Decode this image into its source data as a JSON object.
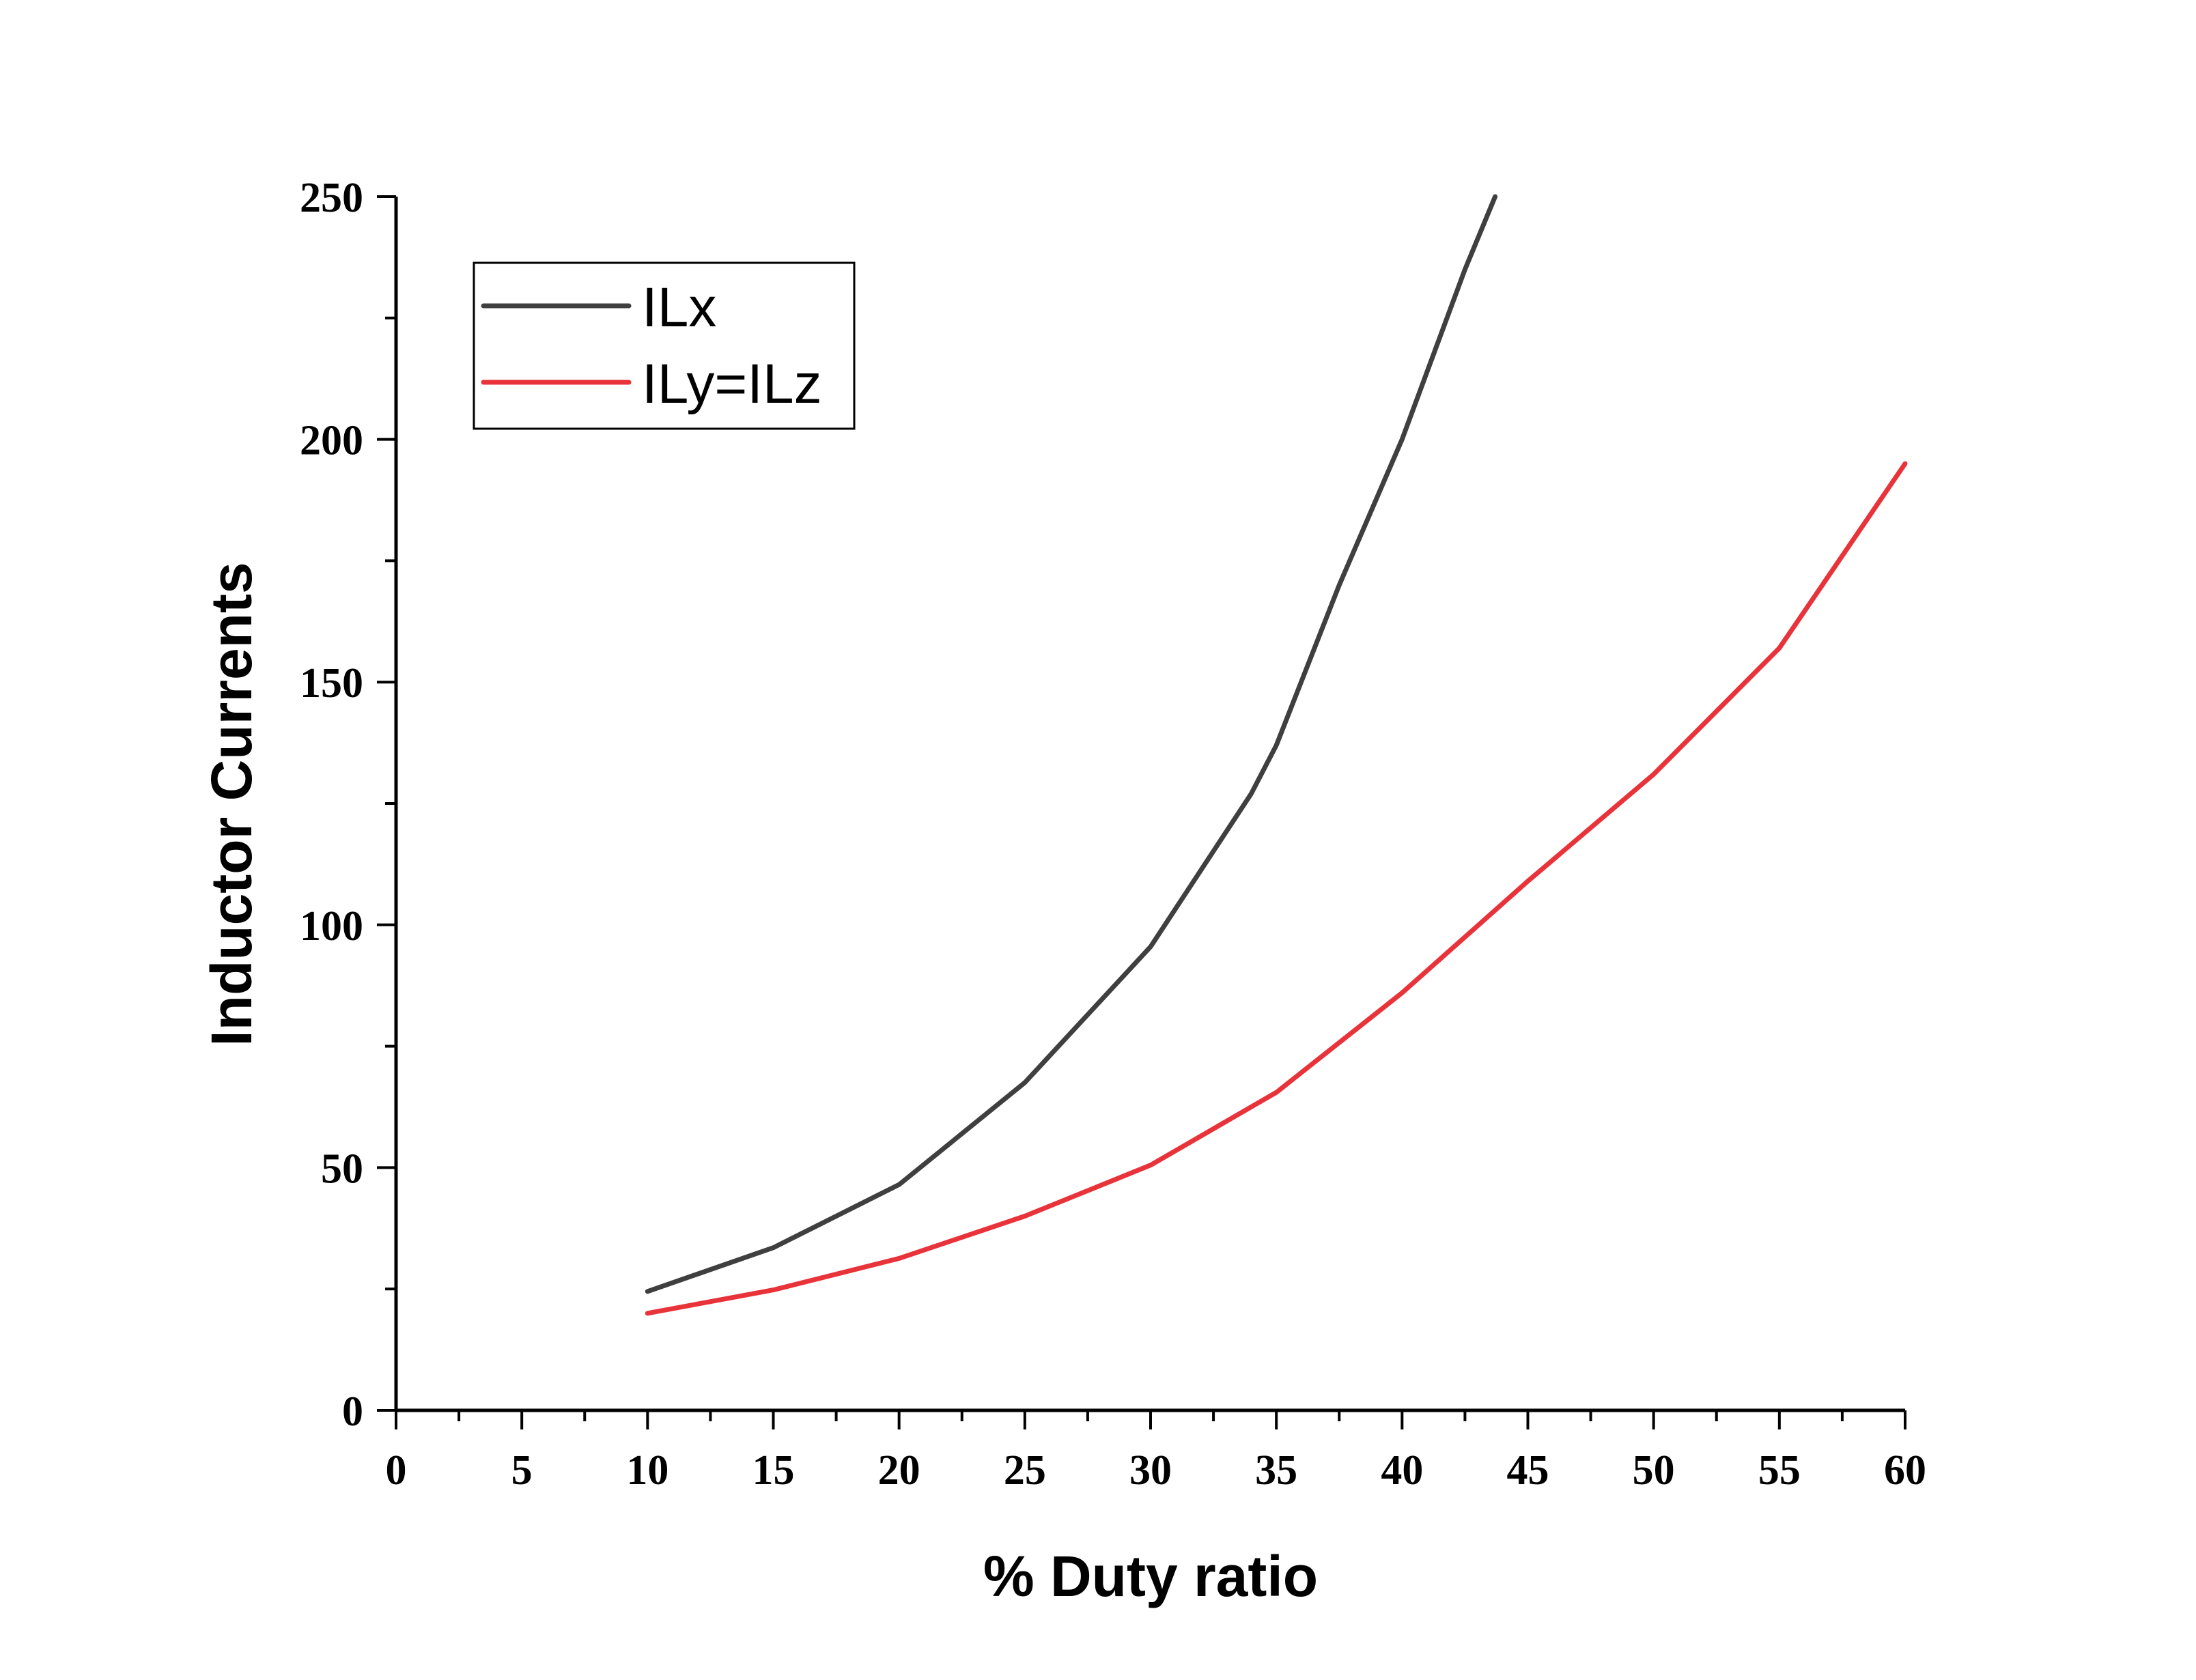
{
  "chart_data": {
    "type": "line",
    "title": "",
    "xlabel": "% Duty ratio",
    "ylabel": "Inductor Currents",
    "xlim": [
      0,
      60
    ],
    "ylim": [
      0,
      250
    ],
    "x_ticks": [
      0,
      5,
      10,
      15,
      20,
      25,
      30,
      35,
      40,
      45,
      50,
      55,
      60
    ],
    "y_ticks": [
      0,
      50,
      100,
      150,
      200,
      250
    ],
    "x_minor_step": 2.5,
    "y_minor_step": 25,
    "grid": false,
    "legend_position": "top-left",
    "series": [
      {
        "name": "ILx",
        "color": "#3f3f3f",
        "x": [
          10,
          15,
          20,
          25,
          30,
          34,
          35,
          37.5,
          40,
          42.5,
          43.7
        ],
        "y": [
          24.5,
          33.5,
          46.5,
          67.5,
          95.5,
          127,
          137,
          170,
          200,
          235,
          250
        ]
      },
      {
        "name": "ILy=ILz",
        "color": "#e8333a",
        "x": [
          10,
          15,
          20,
          25,
          30,
          35,
          40,
          45,
          50,
          55,
          60
        ],
        "y": [
          20,
          24.8,
          31.3,
          40,
          50.5,
          65.5,
          86,
          109,
          131,
          157,
          195
        ]
      }
    ]
  }
}
